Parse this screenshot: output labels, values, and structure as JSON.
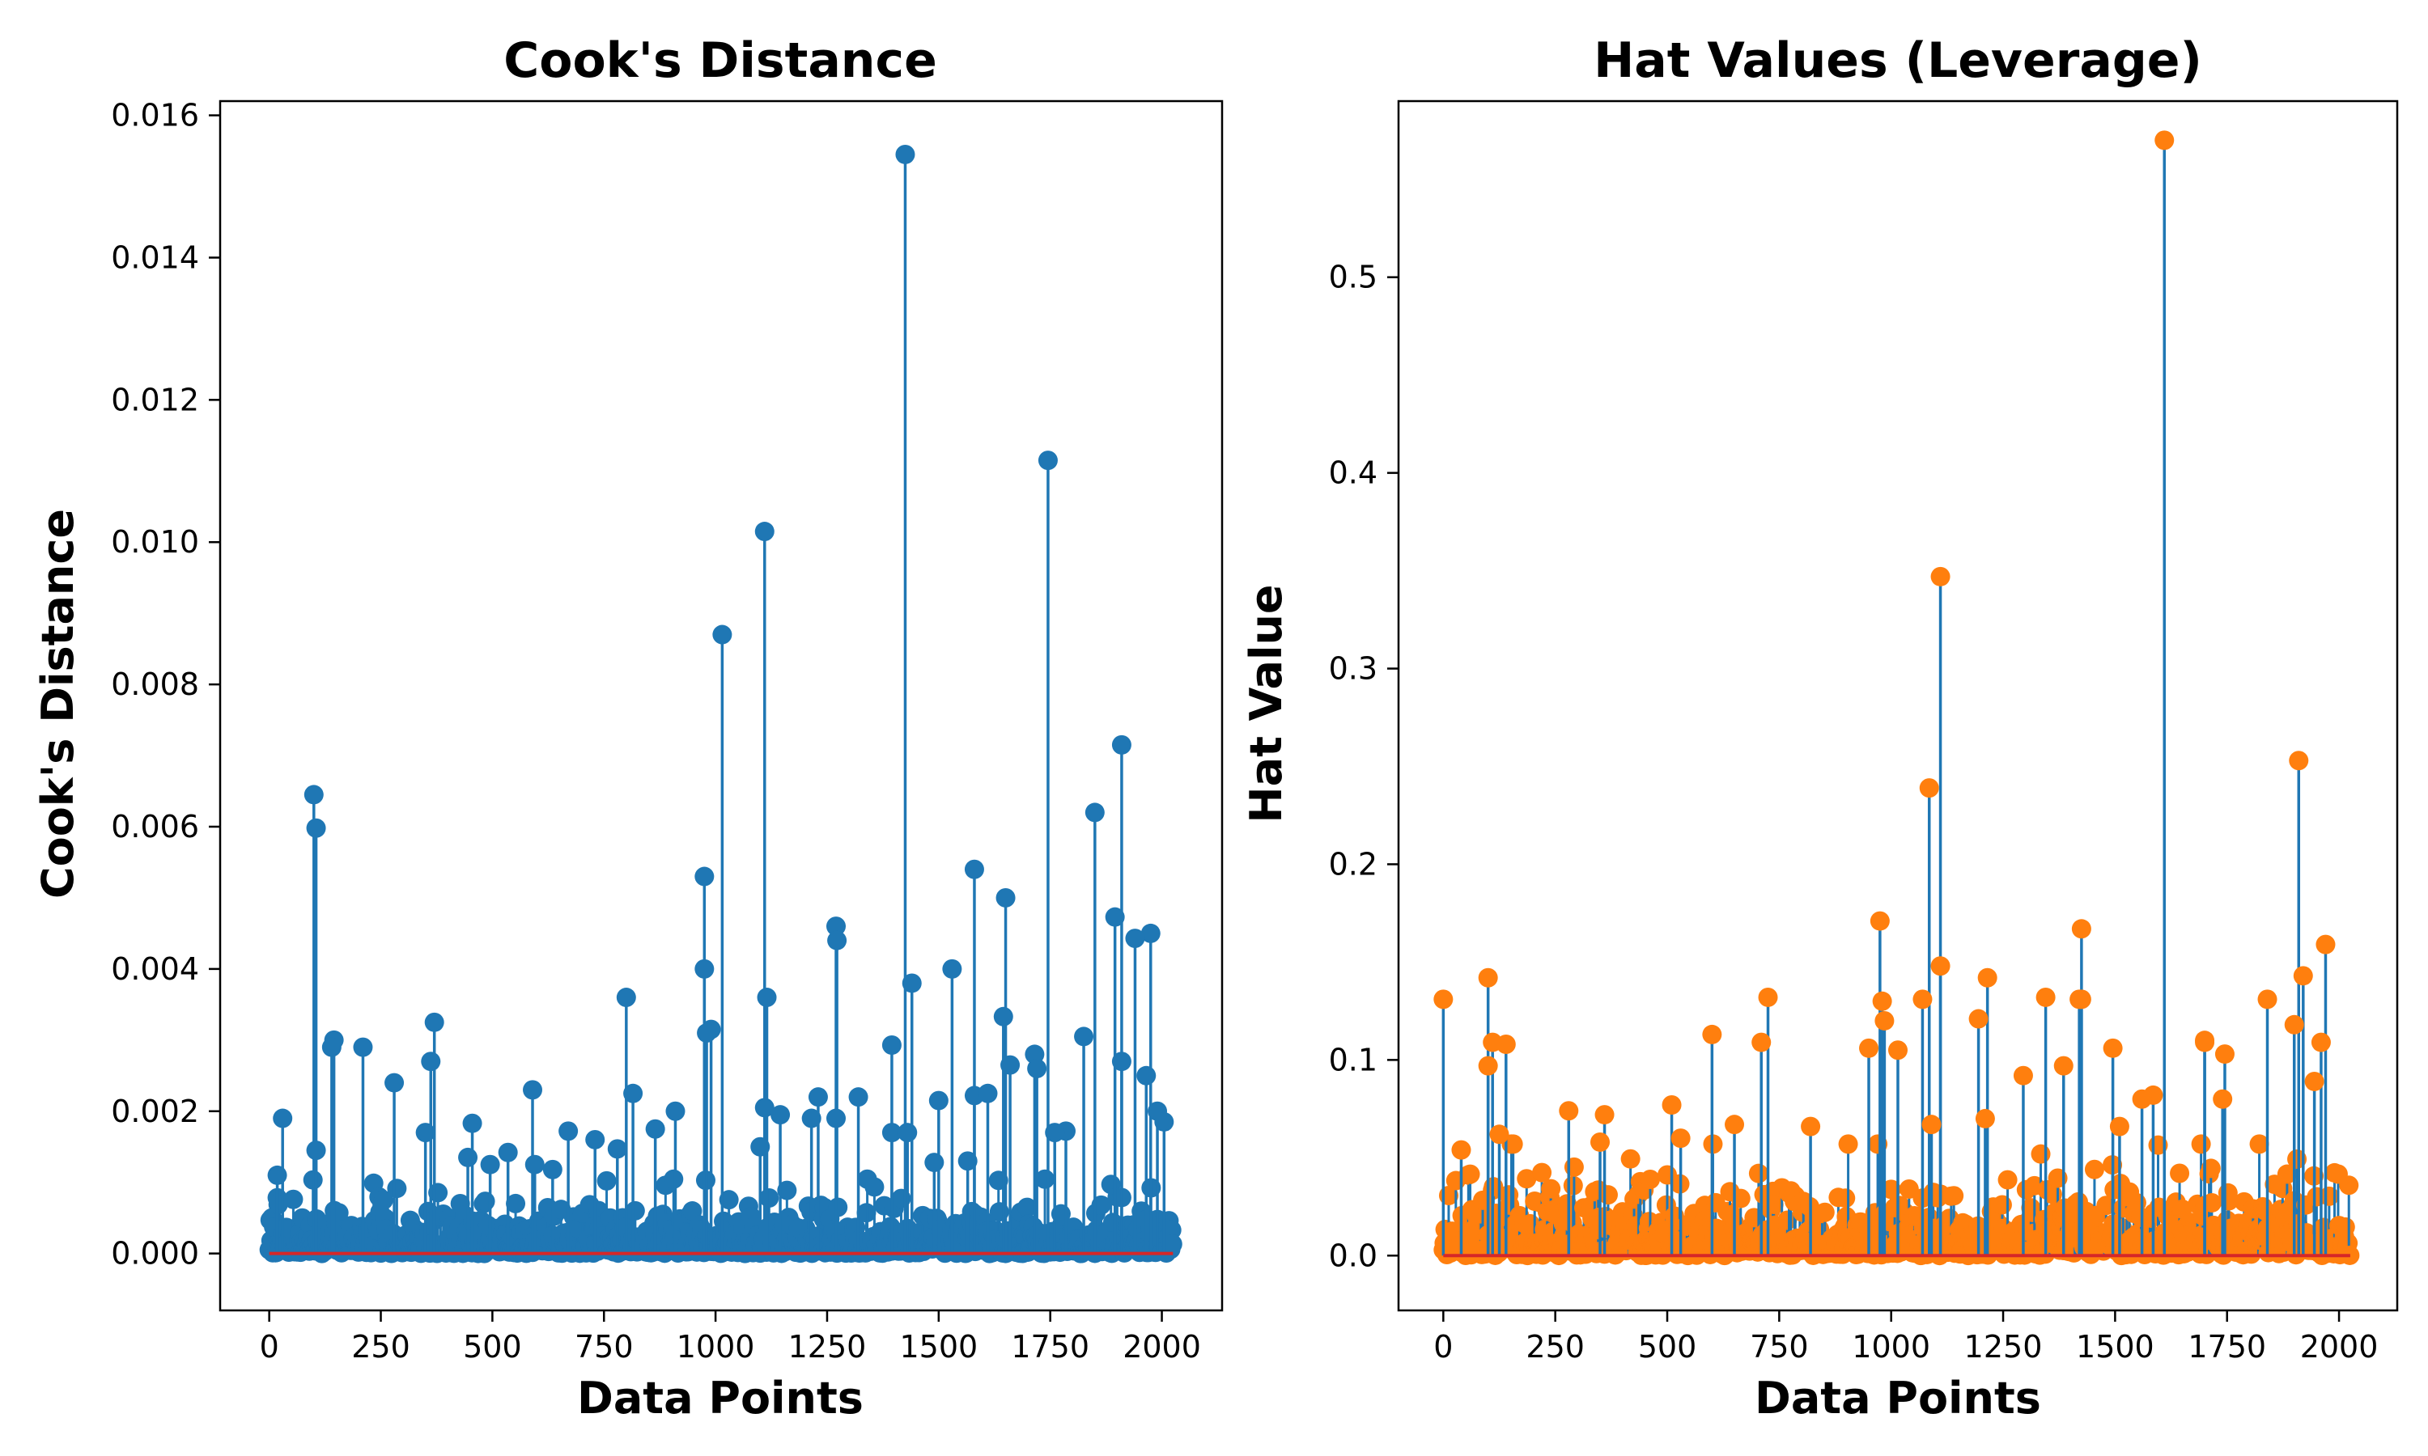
{
  "colors": {
    "stem": "#1f77b4",
    "baseline": "#d62728",
    "cooks_marker": "#1f77b4",
    "hat_marker": "#ff7f0e",
    "axes": "#000000",
    "background": "#ffffff"
  },
  "chart_data": [
    {
      "type": "stem",
      "title": "Cook's Distance",
      "xlabel": "Data Points",
      "ylabel": "Cook's Distance",
      "xlim": [
        -110,
        2135
      ],
      "ylim": [
        -0.0008,
        0.0162
      ],
      "xticks": [
        0,
        250,
        500,
        750,
        1000,
        1250,
        1500,
        1750,
        2000
      ],
      "xtick_labels": [
        "0",
        "250",
        "500",
        "750",
        "1000",
        "1250",
        "1500",
        "1750",
        "2000"
      ],
      "yticks": [
        0.0,
        0.002,
        0.004,
        0.006,
        0.008,
        0.01,
        0.012,
        0.014,
        0.016
      ],
      "ytick_labels": [
        "0.000",
        "0.002",
        "0.004",
        "0.006",
        "0.008",
        "0.010",
        "0.012",
        "0.014",
        "0.016"
      ],
      "grid": false,
      "marker_color": "#1f77b4",
      "n_points": 2026,
      "prominent_points": [
        [
          1425,
          0.01545
        ],
        [
          1745,
          0.01115
        ],
        [
          1110,
          0.01015
        ],
        [
          1015,
          0.0087
        ],
        [
          1910,
          0.00715
        ],
        [
          100,
          0.00645
        ],
        [
          105,
          0.00598
        ],
        [
          1850,
          0.0062
        ],
        [
          1580,
          0.0054
        ],
        [
          975,
          0.0053
        ],
        [
          1650,
          0.005
        ],
        [
          1895,
          0.00473
        ],
        [
          1270,
          0.0046
        ],
        [
          1975,
          0.0045
        ],
        [
          1940,
          0.00443
        ],
        [
          1272,
          0.0044
        ],
        [
          1530,
          0.004
        ],
        [
          975,
          0.004
        ],
        [
          1440,
          0.0038
        ],
        [
          1115,
          0.0036
        ],
        [
          800,
          0.0036
        ],
        [
          1645,
          0.00333
        ],
        [
          370,
          0.00325
        ],
        [
          990,
          0.00315
        ],
        [
          980,
          0.0031
        ],
        [
          1825,
          0.00305
        ],
        [
          145,
          0.003
        ],
        [
          140,
          0.0029
        ],
        [
          1395,
          0.00293
        ],
        [
          210,
          0.0029
        ],
        [
          362,
          0.0027
        ],
        [
          1715,
          0.0028
        ],
        [
          1910,
          0.0027
        ],
        [
          1660,
          0.00265
        ],
        [
          1720,
          0.0026
        ],
        [
          1965,
          0.0025
        ],
        [
          280,
          0.0024
        ],
        [
          590,
          0.0023
        ],
        [
          815,
          0.00225
        ],
        [
          1580,
          0.00222
        ],
        [
          1610,
          0.00225
        ],
        [
          1230,
          0.0022
        ],
        [
          1320,
          0.0022
        ],
        [
          1500,
          0.00215
        ],
        [
          1110,
          0.00205
        ],
        [
          910,
          0.002
        ],
        [
          1145,
          0.00195
        ],
        [
          1990,
          0.002
        ],
        [
          30,
          0.0019
        ],
        [
          1270,
          0.0019
        ],
        [
          1215,
          0.0019
        ],
        [
          455,
          0.00183
        ],
        [
          2005,
          0.00185
        ],
        [
          1785,
          0.00172
        ],
        [
          1760,
          0.0017
        ],
        [
          350,
          0.0017
        ],
        [
          670,
          0.00172
        ],
        [
          865,
          0.00175
        ],
        [
          730,
          0.0016
        ],
        [
          1100,
          0.0015
        ],
        [
          1395,
          0.0017
        ],
        [
          1430,
          0.0017
        ],
        [
          780,
          0.00147
        ],
        [
          105,
          0.00145
        ],
        [
          535,
          0.00142
        ],
        [
          1565,
          0.0013
        ],
        [
          445,
          0.00135
        ],
        [
          1490,
          0.00128
        ],
        [
          495,
          0.00125
        ],
        [
          595,
          0.00125
        ],
        [
          635,
          0.00118
        ],
        [
          18,
          0.0011
        ]
      ]
    },
    {
      "type": "stem",
      "title": "Hat Values (Leverage)",
      "xlabel": "Data Points",
      "ylabel": "Hat Value",
      "xlim": [
        -100,
        2130
      ],
      "ylim": [
        -0.028,
        0.59
      ],
      "xticks": [
        0,
        250,
        500,
        750,
        1000,
        1250,
        1500,
        1750,
        2000
      ],
      "xtick_labels": [
        "0",
        "250",
        "500",
        "750",
        "1000",
        "1250",
        "1500",
        "1750",
        "2000"
      ],
      "yticks": [
        0.0,
        0.1,
        0.2,
        0.3,
        0.4,
        0.5
      ],
      "ytick_labels": [
        "0.0",
        "0.1",
        "0.2",
        "0.3",
        "0.4",
        "0.5"
      ],
      "grid": false,
      "marker_color": "#ff7f0e",
      "n_points": 2026,
      "prominent_points": [
        [
          1610,
          0.57
        ],
        [
          1110,
          0.347
        ],
        [
          1910,
          0.253
        ],
        [
          1085,
          0.239
        ],
        [
          975,
          0.171
        ],
        [
          1425,
          0.167
        ],
        [
          1970,
          0.159
        ],
        [
          1110,
          0.148
        ],
        [
          1920,
          0.143
        ],
        [
          100,
          0.142
        ],
        [
          1215,
          0.142
        ],
        [
          1840,
          0.131
        ],
        [
          1425,
          0.131
        ],
        [
          1345,
          0.132
        ],
        [
          1420,
          0.131
        ],
        [
          1070,
          0.131
        ],
        [
          0,
          0.131
        ],
        [
          725,
          0.132
        ],
        [
          980,
          0.13
        ],
        [
          1195,
          0.121
        ],
        [
          1900,
          0.118
        ],
        [
          985,
          0.12
        ],
        [
          1700,
          0.11
        ],
        [
          140,
          0.108
        ],
        [
          600,
          0.113
        ],
        [
          1495,
          0.106
        ],
        [
          950,
          0.106
        ],
        [
          1015,
          0.105
        ],
        [
          1700,
          0.109
        ],
        [
          710,
          0.109
        ],
        [
          1960,
          0.109
        ],
        [
          1745,
          0.103
        ],
        [
          110,
          0.109
        ],
        [
          1385,
          0.097
        ],
        [
          1295,
          0.092
        ],
        [
          100,
          0.097
        ],
        [
          1945,
          0.089
        ],
        [
          1585,
          0.082
        ],
        [
          1560,
          0.08
        ],
        [
          510,
          0.077
        ],
        [
          1740,
          0.08
        ],
        [
          280,
          0.074
        ],
        [
          360,
          0.072
        ],
        [
          650,
          0.067
        ],
        [
          820,
          0.066
        ],
        [
          1210,
          0.07
        ],
        [
          1090,
          0.067
        ],
        [
          1510,
          0.066
        ],
        [
          125,
          0.062
        ],
        [
          530,
          0.06
        ],
        [
          350,
          0.058
        ],
        [
          40,
          0.054
        ]
      ]
    }
  ]
}
